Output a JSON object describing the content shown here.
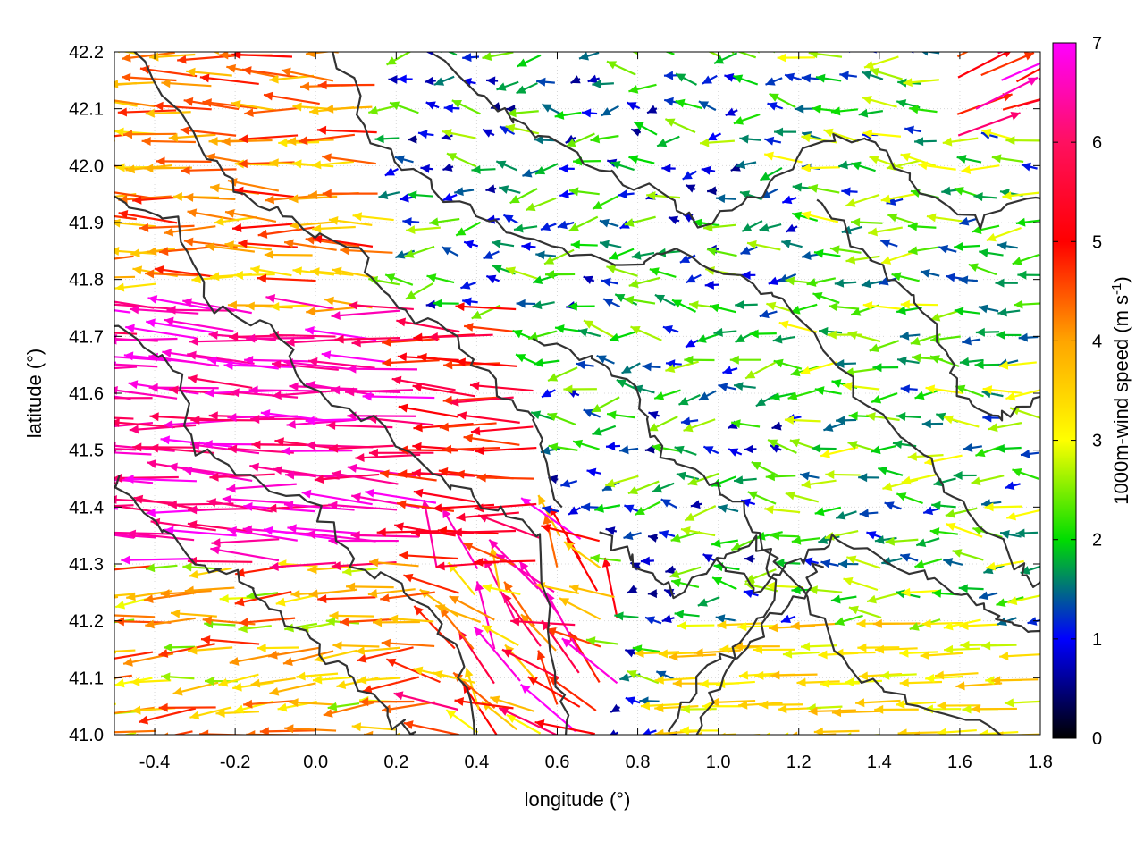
{
  "chart_data": {
    "type": "vector-field",
    "xlabel": "longitude (°)",
    "ylabel": "latitude (°)",
    "xlim": [
      -0.5,
      1.8
    ],
    "ylim": [
      41.0,
      42.2
    ],
    "xticks": [
      -0.4,
      -0.2,
      0.0,
      0.2,
      0.4,
      0.6,
      0.8,
      1.0,
      1.2,
      1.4,
      1.6,
      1.8
    ],
    "yticks": [
      41.0,
      41.1,
      41.2,
      41.3,
      41.4,
      41.5,
      41.6,
      41.7,
      41.8,
      41.9,
      42.0,
      42.1,
      42.2
    ],
    "xtick_labels": [
      "-0.4",
      "-0.2",
      "0.0",
      "0.2",
      "0.4",
      "0.6",
      "0.8",
      "1.0",
      "1.2",
      "1.4",
      "1.6",
      "1.8"
    ],
    "ytick_labels": [
      "41.0",
      "41.1",
      "41.2",
      "41.3",
      "41.4",
      "41.5",
      "41.6",
      "41.7",
      "41.8",
      "41.9",
      "42.0",
      "42.1",
      "42.2"
    ],
    "grid": true,
    "colorbar": {
      "label_main": "1000m-wind speed (m s",
      "label_exp": "-1",
      "label_close": ")",
      "range": [
        0,
        7
      ],
      "ticks": [
        0,
        1,
        2,
        3,
        4,
        5,
        6,
        7
      ],
      "tick_labels": [
        "0",
        "1",
        "2",
        "3",
        "4",
        "5",
        "6",
        "7"
      ],
      "colors": [
        "#000000",
        "#0000ff",
        "#00dd00",
        "#ffff00",
        "#ffa500",
        "#ff0000",
        "#ff00ff"
      ]
    },
    "contour_color": "#333333",
    "wind_regions": [
      {
        "region": "west (lon -0.5 to 0.5, lat 41.3 to 41.7)",
        "direction": "westward, slightly north",
        "speed": 6.5
      },
      {
        "region": "northwest (lon -0.5 to 0.2, lat 41.7 to 42.2)",
        "direction": "westward",
        "speed": 4.5
      },
      {
        "region": "central-north (lon 0.3 to 1.2, lat 41.6 to 42.2)",
        "direction": "westward",
        "speed": 1.5
      },
      {
        "region": "east (lon 1.2 to 1.8, lat 41.3 to 42.1)",
        "direction": "westward",
        "speed": 2.0
      },
      {
        "region": "southeast (lon 0.9 to 1.8, lat 41.0 to 41.2)",
        "direction": "westward",
        "speed": 3.8
      },
      {
        "region": "south-central (lon 0.3 to 0.7, lat 41.0 to 41.3)",
        "direction": "northwestward",
        "speed": 5.0
      }
    ]
  }
}
